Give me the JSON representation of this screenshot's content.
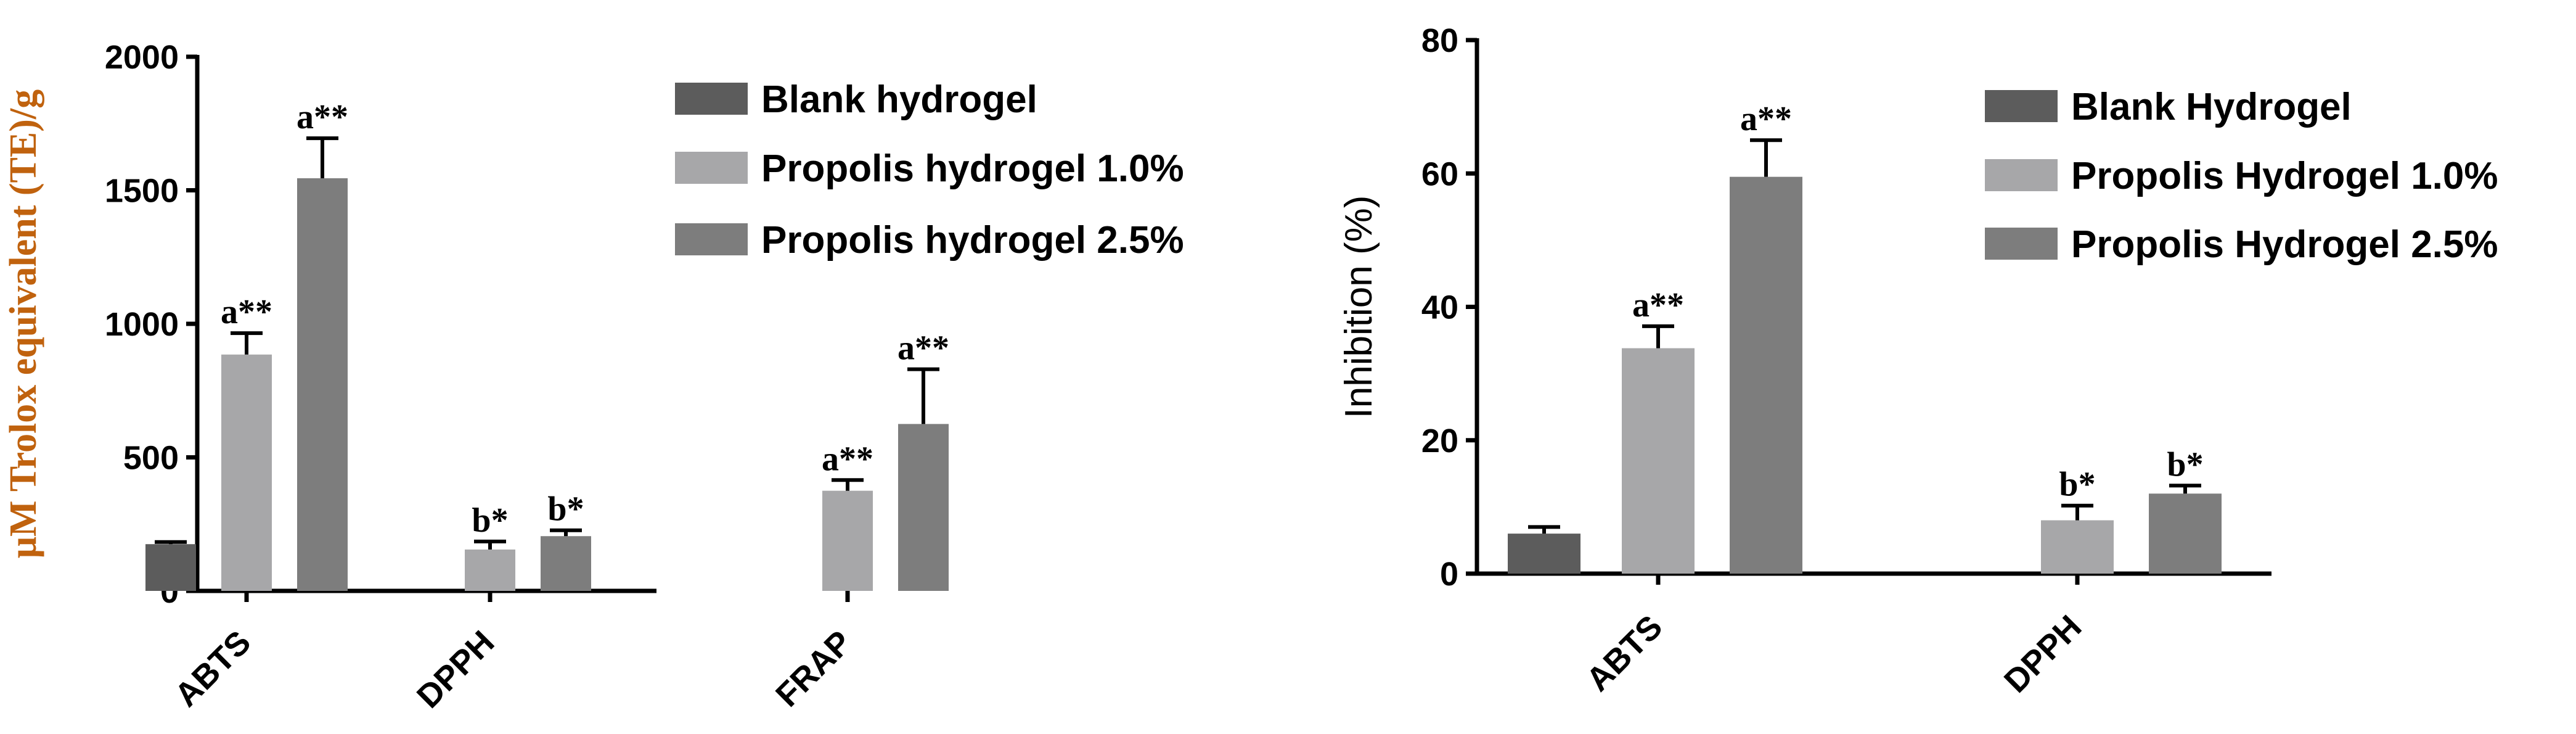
{
  "chart_data": [
    {
      "type": "bar",
      "title": "",
      "xlabel": "",
      "ylabel": "μM Trolox equivalent (TE)/g",
      "ylim": [
        0,
        2000
      ],
      "yticks": [
        "0",
        "500",
        "1000",
        "1500",
        "2000"
      ],
      "categories": [
        "ABTS",
        "DPPH",
        "FRAP"
      ],
      "legend_position": "top-right",
      "series": [
        {
          "name": "Blank hydrogel",
          "color": "#5c5c5c",
          "values": [
            175,
            null,
            null
          ],
          "errors": [
            8,
            null,
            null
          ]
        },
        {
          "name": "Propolis hydrogel 1.0%",
          "color": "#a7a7a9",
          "values": [
            885,
            155,
            375
          ],
          "errors": [
            80,
            30,
            40
          ]
        },
        {
          "name": "Propolis hydrogel 2.5%",
          "color": "#7d7d7d",
          "values": [
            1545,
            205,
            625
          ],
          "errors": [
            150,
            22,
            205
          ]
        }
      ],
      "annotations": [
        {
          "series": 1,
          "category": 0,
          "text": "a**"
        },
        {
          "series": 2,
          "category": 0,
          "text": "a**"
        },
        {
          "series": 1,
          "category": 1,
          "text": "b*"
        },
        {
          "series": 2,
          "category": 1,
          "text": "b*"
        },
        {
          "series": 1,
          "category": 2,
          "text": "a**"
        },
        {
          "series": 2,
          "category": 2,
          "text": "a**"
        }
      ]
    },
    {
      "type": "bar",
      "title": "",
      "xlabel": "",
      "ylabel": "Inhibition (%)",
      "ylim": [
        0,
        80
      ],
      "yticks": [
        "0",
        "20",
        "40",
        "60",
        "80"
      ],
      "categories": [
        "ABTS",
        "DPPH"
      ],
      "legend_position": "top-right",
      "series": [
        {
          "name": "Blank Hydrogel",
          "color": "#5c5c5c",
          "values": [
            6,
            null
          ],
          "errors": [
            1,
            null
          ]
        },
        {
          "name": "Propolis Hydrogel 1.0%",
          "color": "#a7a7a9",
          "values": [
            33.8,
            8
          ],
          "errors": [
            3.3,
            2.2
          ]
        },
        {
          "name": "Propolis Hydrogel 2.5%",
          "color": "#7d7d7d",
          "values": [
            59.5,
            12
          ],
          "errors": [
            5.5,
            1.2
          ]
        }
      ],
      "annotations": [
        {
          "series": 1,
          "category": 0,
          "text": "a**"
        },
        {
          "series": 2,
          "category": 0,
          "text": "a**"
        },
        {
          "series": 1,
          "category": 1,
          "text": "b*"
        },
        {
          "series": 2,
          "category": 1,
          "text": "b*"
        }
      ]
    }
  ]
}
